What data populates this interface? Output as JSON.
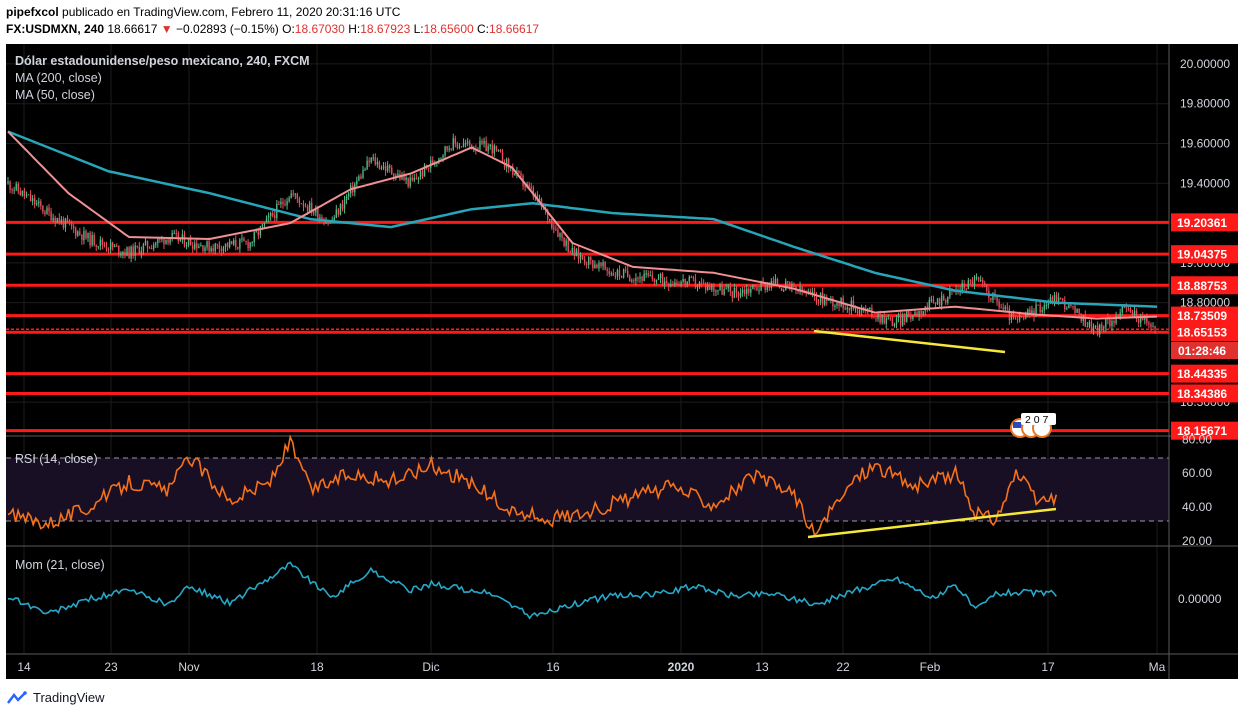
{
  "header": {
    "author": "pipefxcol",
    "published": "publicado en TradingView.com, Febrero 11, 2020 20:31:16 UTC",
    "symbol": "FX:USDMXN, 240",
    "last": "18.66617",
    "change": "−0.02893 (−0.15%)",
    "o_label": "O:",
    "o": "18.67030",
    "h_label": "H:",
    "h": "18.67923",
    "l_label": "L:",
    "l": "18.65600",
    "c_label": "C:",
    "c": "18.66617"
  },
  "legend": {
    "title": "Dólar estadounidense/peso mexicano, 240, FXCM",
    "ma200": "MA (200, close)",
    "ma50": "MA (50, close)",
    "rsi": "RSI (14, close)",
    "mom": "Mom (21, close)"
  },
  "countdown": "01:28:46",
  "events_badge": "2 0 7",
  "footer": {
    "brand": "TradingView"
  },
  "colors": {
    "background": "#000000",
    "candle_up": "#53b987",
    "candle_down": "#eb4d5c",
    "ma200": "#26a6b8",
    "ma50": "#f09093",
    "level": "#ff1a1a",
    "trendline": "#f5e83a",
    "rsi": "#f5721b",
    "momentum": "#27a8c9"
  },
  "chart_data": [
    {
      "type": "candlestick",
      "title": "Dólar estadounidense/peso mexicano, 240, FXCM",
      "x_ticks": [
        "14",
        "23",
        "Nov",
        "18",
        "Dic",
        "16",
        "2020",
        "13",
        "22",
        "Feb",
        "17",
        "Ma"
      ],
      "y_ticks": [
        "20.00000",
        "19.80000",
        "19.60000",
        "19.40000",
        "19.00000",
        "18.80000",
        "18.30000"
      ],
      "y_range": [
        18.13,
        20.1
      ],
      "price_anchors": [
        [
          0,
          19.4
        ],
        [
          4,
          19.25
        ],
        [
          8,
          19.12
        ],
        [
          12,
          19.05
        ],
        [
          16,
          19.13
        ],
        [
          20,
          19.08
        ],
        [
          24,
          19.1
        ],
        [
          28,
          19.35
        ],
        [
          32,
          19.2
        ],
        [
          36,
          19.52
        ],
        [
          40,
          19.4
        ],
        [
          44,
          19.6
        ],
        [
          48,
          19.58
        ],
        [
          52,
          19.35
        ],
        [
          56,
          19.05
        ],
        [
          60,
          18.95
        ],
        [
          64,
          18.92
        ],
        [
          68,
          18.9
        ],
        [
          72,
          18.85
        ],
        [
          76,
          18.9
        ],
        [
          80,
          18.83
        ],
        [
          84,
          18.78
        ],
        [
          88,
          18.7
        ],
        [
          92,
          18.8
        ],
        [
          96,
          18.92
        ],
        [
          100,
          18.7
        ],
        [
          104,
          18.83
        ],
        [
          108,
          18.66
        ],
        [
          111,
          18.77
        ],
        [
          114,
          18.66
        ]
      ],
      "horizontal_levels": [
        "19.20361",
        "19.04375",
        "18.88753",
        "18.73509",
        "18.66617",
        "18.65153",
        "18.44335",
        "18.34386",
        "18.15671"
      ],
      "support_trendline": "18.69 → 18.61 (Ene 20 – Feb 13)",
      "series": [
        {
          "name": "MA (200, close)",
          "values": [
            [
              0,
              19.66
            ],
            [
              10,
              19.46
            ],
            [
              20,
              19.35
            ],
            [
              30,
              19.22
            ],
            [
              38,
              19.18
            ],
            [
              46,
              19.27
            ],
            [
              52,
              19.3
            ],
            [
              60,
              19.25
            ],
            [
              70,
              19.22
            ],
            [
              78,
              19.08
            ],
            [
              86,
              18.95
            ],
            [
              94,
              18.86
            ],
            [
              104,
              18.8
            ],
            [
              114,
              18.78
            ]
          ]
        },
        {
          "name": "MA (50, close)",
          "values": [
            [
              0,
              19.66
            ],
            [
              6,
              19.35
            ],
            [
              12,
              19.13
            ],
            [
              20,
              19.12
            ],
            [
              28,
              19.2
            ],
            [
              34,
              19.37
            ],
            [
              40,
              19.45
            ],
            [
              46,
              19.58
            ],
            [
              50,
              19.48
            ],
            [
              56,
              19.1
            ],
            [
              62,
              18.98
            ],
            [
              70,
              18.95
            ],
            [
              78,
              18.87
            ],
            [
              86,
              18.75
            ],
            [
              94,
              18.78
            ],
            [
              102,
              18.74
            ],
            [
              108,
              18.72
            ],
            [
              114,
              18.73
            ]
          ]
        }
      ]
    },
    {
      "type": "line",
      "title": "RSI (14, close)",
      "y_ticks": [
        "80.00",
        "60.00",
        "40.00",
        "20.00"
      ],
      "y_range": [
        17,
        82
      ],
      "series": [
        {
          "name": "RSI (14, close)",
          "values": [
            [
              0,
              35
            ],
            [
              4,
              31
            ],
            [
              8,
              40
            ],
            [
              12,
              55
            ],
            [
              16,
              50
            ],
            [
              18,
              70
            ],
            [
              22,
              44
            ],
            [
              26,
              55
            ],
            [
              28,
              78
            ],
            [
              30,
              50
            ],
            [
              34,
              60
            ],
            [
              38,
              55
            ],
            [
              42,
              65
            ],
            [
              46,
              54
            ],
            [
              50,
              37
            ],
            [
              54,
              33
            ],
            [
              58,
              38
            ],
            [
              62,
              46
            ],
            [
              66,
              52
            ],
            [
              70,
              42
            ],
            [
              74,
              58
            ],
            [
              78,
              48
            ],
            [
              80,
              23
            ],
            [
              84,
              57
            ],
            [
              86,
              65
            ],
            [
              90,
              52
            ],
            [
              94,
              60
            ],
            [
              96,
              36
            ],
            [
              98,
              33
            ],
            [
              100,
              60
            ],
            [
              102,
              44
            ],
            [
              104,
              44
            ]
          ]
        }
      ],
      "hlines": [
        70,
        30
      ],
      "trendlines": [
        "rising support from 20.00 (Ene 20) to 37.00 (Feb 17)"
      ]
    },
    {
      "type": "line",
      "title": "Mom (21, close)",
      "y_ticks": [
        "0.00000"
      ],
      "series": [
        {
          "name": "Mom (21, close)",
          "values": [
            [
              0,
              0.04
            ],
            [
              4,
              -0.22
            ],
            [
              8,
              0.0
            ],
            [
              12,
              0.12
            ],
            [
              16,
              -0.08
            ],
            [
              18,
              0.18
            ],
            [
              22,
              -0.06
            ],
            [
              28,
              0.5
            ],
            [
              32,
              0.02
            ],
            [
              36,
              0.4
            ],
            [
              40,
              0.12
            ],
            [
              42,
              0.22
            ],
            [
              48,
              0.07
            ],
            [
              52,
              -0.25
            ],
            [
              56,
              -0.08
            ],
            [
              60,
              0.05
            ],
            [
              64,
              0.06
            ],
            [
              68,
              0.18
            ],
            [
              72,
              0.05
            ],
            [
              76,
              0.08
            ],
            [
              80,
              -0.08
            ],
            [
              84,
              0.12
            ],
            [
              88,
              0.3
            ],
            [
              92,
              0.0
            ],
            [
              94,
              0.22
            ],
            [
              96,
              -0.16
            ],
            [
              98,
              0.08
            ],
            [
              100,
              0.1
            ],
            [
              104,
              0.08
            ]
          ]
        }
      ]
    }
  ]
}
